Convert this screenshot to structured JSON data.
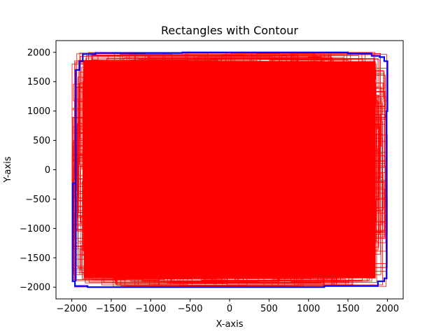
{
  "chart_data": {
    "type": "rectangles",
    "title": "Rectangles with Contour",
    "xlabel": "X-axis",
    "ylabel": "Y-axis",
    "xlim": [
      -2200,
      2200
    ],
    "ylim": [
      -2200,
      2200
    ],
    "x_ticks": [
      -2000,
      -1500,
      -1000,
      -500,
      0,
      500,
      1000,
      1500,
      2000
    ],
    "y_ticks": [
      -2000,
      -1500,
      -1000,
      -500,
      0,
      500,
      1000,
      1500,
      2000
    ],
    "x_tick_labels": [
      "−2000",
      "−1500",
      "−1000",
      "−500",
      "0",
      "500",
      "1000",
      "1500",
      "2000"
    ],
    "y_tick_labels": [
      "−2000",
      "−1500",
      "−1000",
      "−500",
      "0",
      "500",
      "1000",
      "1500",
      "2000"
    ],
    "grid": false,
    "legend": "none",
    "rectangle_region": {
      "x": [
        -2000,
        2000
      ],
      "y": [
        -2000,
        2000
      ]
    },
    "rectangle_color": "#ff0000",
    "contour_color": "#0000ff",
    "contour": {
      "x": [
        -1950,
        -1950,
        -1900,
        -1900,
        -1860,
        -1860,
        -1700,
        -1700,
        -600,
        -600,
        1500,
        1500,
        1800,
        1800,
        1900,
        1900,
        1960,
        1960,
        2000,
        2000,
        1990,
        1990,
        1960,
        1960,
        1880,
        1880,
        1200,
        1200,
        -1800,
        -1800,
        -1960,
        -1960,
        -1990,
        -1990,
        -1950
      ],
      "y": [
        -1900,
        1700,
        1700,
        1850,
        1850,
        1970,
        1970,
        1990,
        1990,
        2000,
        2000,
        1980,
        1980,
        1940,
        1940,
        1920,
        1920,
        1850,
        1850,
        1000,
        1000,
        -1850,
        -1850,
        -1900,
        -1900,
        -1980,
        -1980,
        -2000,
        -2000,
        -1980,
        -1980,
        -1900,
        -1900,
        -230,
        -230
      ]
    }
  }
}
